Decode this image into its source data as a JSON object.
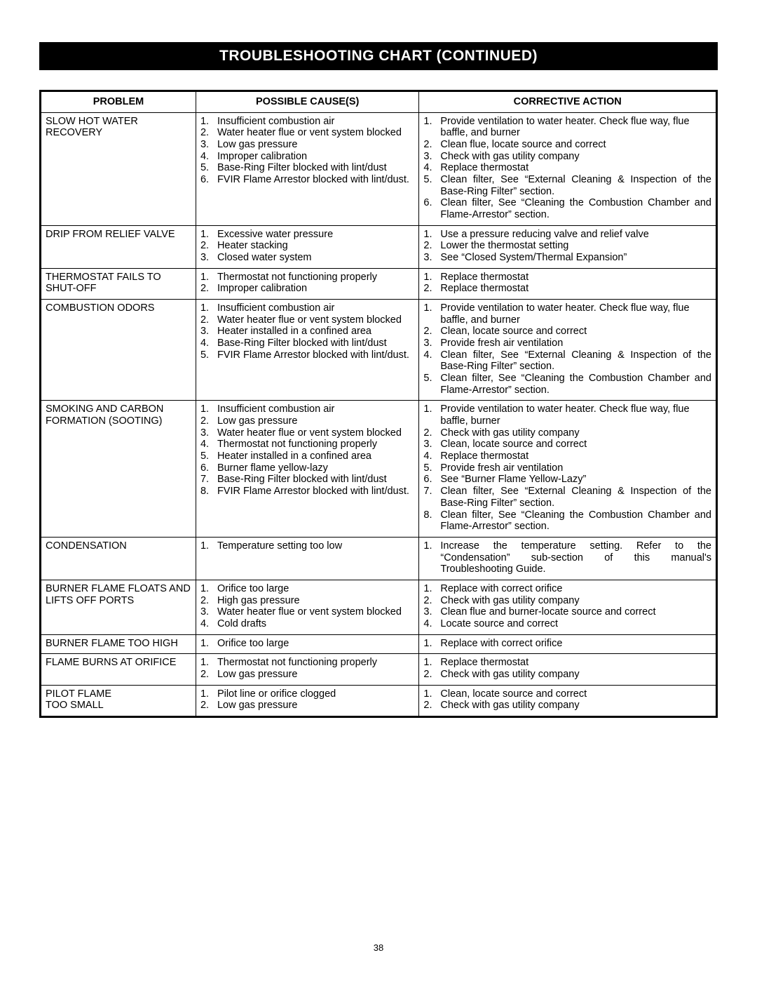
{
  "title": "TROUBLESHOOTING CHART (CONTINUED)",
  "page_number": "38",
  "headers": {
    "problem": "PROBLEM",
    "cause": "POSSIBLE CAUSE(S)",
    "action": "CORRECTIVE ACTION"
  },
  "rows": [
    {
      "problem": "SLOW HOT WATER RECOVERY",
      "causes": [
        "Insufficient combustion air",
        "Water heater flue or vent system blocked",
        "Low gas pressure",
        "Improper calibration",
        "Base-Ring Filter blocked with lint/dust",
        "FVIR Flame Arrestor blocked with lint/dust."
      ],
      "actions": [
        "Provide ventilation to water heater. Check flue way, flue baffle, and burner",
        "Clean flue, locate source and correct",
        "Check with gas utility company",
        "Replace thermostat",
        "Clean filter, See “External Cleaning & Inspection of the Base-Ring Filter” section.",
        "Clean filter, See “Cleaning the Combustion Chamber and Flame-Arrestor” section."
      ],
      "cause_justify": [
        false,
        true,
        false,
        false,
        false,
        true
      ],
      "action_justify": [
        false,
        false,
        false,
        false,
        true,
        true
      ]
    },
    {
      "problem": "DRIP FROM RELIEF VALVE",
      "causes": [
        "Excessive water pressure",
        "Heater stacking",
        "Closed water system"
      ],
      "actions": [
        "Use a pressure reducing valve and relief valve",
        "Lower the thermostat setting",
        "See “Closed System/Thermal Expansion”"
      ],
      "action_justify": [
        true,
        false,
        false
      ]
    },
    {
      "problem": "THERMOSTAT FAILS TO SHUT-OFF",
      "causes": [
        "Thermostat not functioning properly",
        "Improper calibration"
      ],
      "actions": [
        "Replace thermostat",
        "Replace thermostat"
      ]
    },
    {
      "problem": "COMBUSTION ODORS",
      "causes": [
        "Insufficient combustion air",
        "Water heater flue or vent system blocked",
        "Heater installed in a confined area",
        "Base-Ring Filter blocked with lint/dust",
        "FVIR Flame Arrestor blocked with lint/dust."
      ],
      "actions": [
        "Provide ventilation to water heater. Check flue way, flue baffle, and burner",
        "Clean, locate source and correct",
        "Provide fresh air ventilation",
        "Clean filter, See “External Cleaning & Inspection of the Base-Ring Filter” section.",
        "Clean filter, See “Cleaning the Combustion Chamber and Flame-Arrestor” section."
      ],
      "cause_justify": [
        false,
        true,
        false,
        false,
        true
      ],
      "action_justify": [
        false,
        false,
        false,
        true,
        true
      ]
    },
    {
      "problem": "SMOKING AND CARBON FORMATION (SOOTING)",
      "causes": [
        "Insufficient combustion air",
        "Low gas pressure",
        "Water heater flue or vent system blocked",
        "Thermostat not functioning properly",
        "Heater installed in a confined area",
        "Burner flame yellow-lazy",
        "Base-Ring Filter blocked with lint/dust",
        "FVIR Flame Arrestor blocked with lint/dust."
      ],
      "actions": [
        "Provide ventilation to water heater. Check flue way, flue baffle, burner",
        "Check with gas utility company",
        "Clean, locate source and correct",
        "Replace thermostat",
        "Provide fresh air ventilation",
        "See “Burner Flame Yellow-Lazy”",
        "Clean filter, See “External Cleaning & Inspection of the Base-Ring Filter” section.",
        "Clean filter, See “Cleaning the Combustion Chamber and Flame-Arrestor” section."
      ],
      "cause_justify": [
        false,
        false,
        true,
        false,
        false,
        false,
        false,
        true
      ],
      "action_justify": [
        false,
        false,
        false,
        false,
        false,
        false,
        true,
        true
      ]
    },
    {
      "problem": "CONDENSATION",
      "causes": [
        "Temperature setting too low"
      ],
      "actions": [
        "Increase the temperature setting. Refer to the “Condensation” sub-section of this manual's Troubleshooting Guide."
      ],
      "action_justify": [
        true
      ]
    },
    {
      "problem": "BURNER FLAME FLOATS AND LIFTS  OFF PORTS",
      "causes": [
        "Orifice too large",
        "High gas pressure",
        "Water heater flue or vent system blocked",
        "Cold drafts"
      ],
      "actions": [
        "Replace with correct orifice",
        "Check with gas utility company",
        "Clean flue and burner-locate source and correct",
        "Locate source and correct"
      ],
      "cause_justify": [
        false,
        false,
        true,
        false
      ]
    },
    {
      "problem": "BURNER FLAME TOO HIGH",
      "causes": [
        "Orifice too large"
      ],
      "actions": [
        "Replace with correct orifice"
      ]
    },
    {
      "problem": "FLAME BURNS AT ORIFICE",
      "causes": [
        "Thermostat not functioning properly",
        "Low gas pressure"
      ],
      "actions": [
        "Replace thermostat",
        "Check with gas utility company"
      ]
    },
    {
      "problem": "PILOT FLAME\nTOO SMALL",
      "causes": [
        "Pilot line or orifice clogged",
        "Low gas pressure"
      ],
      "actions": [
        "Clean, locate source and correct",
        "Check with gas utility company"
      ]
    }
  ]
}
